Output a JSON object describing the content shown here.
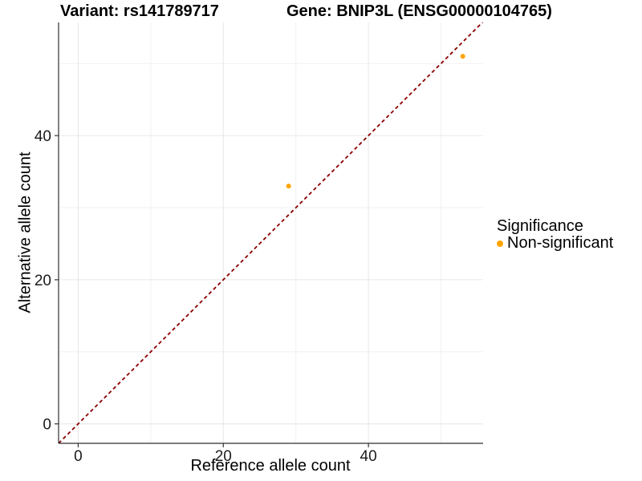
{
  "titles": {
    "variant": "Variant: rs141789717",
    "gene": "Gene: BNIP3L (ENSG00000104765)"
  },
  "legend": {
    "title": "Significance",
    "items": [
      {
        "label": "Non-significant",
        "color": "#FFA500"
      }
    ]
  },
  "colors": {
    "axis_line": "#2F2F2F",
    "tick_mark": "#333333",
    "tick_label": "#1A1A1A",
    "grid_major": "#E6E6E6",
    "grid_minor": "#F1F1F1",
    "reference_line": "#8B0000",
    "point": "#FFA500",
    "background": "#FFFFFF"
  },
  "chart_data": {
    "type": "scatter",
    "title_left": "Variant: rs141789717",
    "title_right": "Gene: BNIP3L (ENSG00000104765)",
    "xlabel": "Reference allele count",
    "ylabel": "Alternative allele count",
    "xlim": [
      -2.7,
      55.8
    ],
    "ylim": [
      -2.7,
      55.7
    ],
    "x_ticks": [
      0,
      20,
      40
    ],
    "y_ticks": [
      0,
      20,
      40
    ],
    "x_minor_ticks": [
      10,
      30,
      50
    ],
    "y_minor_ticks": [
      10,
      30,
      50
    ],
    "grid": "major+minor",
    "legend_position": "right",
    "legend_title": "Significance",
    "series": [
      {
        "name": "Non-significant",
        "color": "#FFA500",
        "marker": "circle",
        "points": [
          [
            29,
            33
          ],
          [
            53,
            51
          ]
        ]
      }
    ],
    "reference_line": {
      "slope": 1,
      "intercept": 0,
      "linetype": "dashed",
      "color": "#8B0000"
    }
  }
}
